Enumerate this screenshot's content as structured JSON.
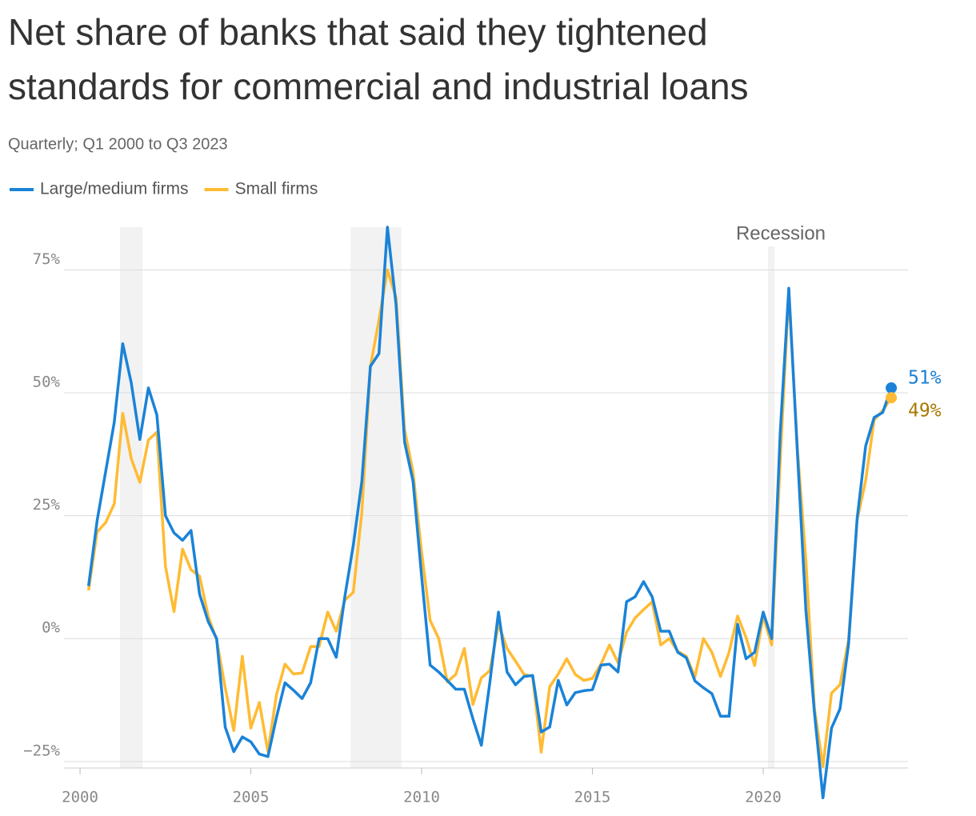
{
  "chart_data": {
    "type": "line",
    "title": [
      "Net share of banks that said they tightened",
      "standards for commercial and industrial loans"
    ],
    "subtitle": "Quarterly; Q1 2000 to Q3 2023",
    "x": [
      2000.25,
      2000.5,
      2000.75,
      2001,
      2001.25,
      2001.5,
      2001.75,
      2002,
      2002.25,
      2002.5,
      2002.75,
      2003,
      2003.25,
      2003.5,
      2003.75,
      2004,
      2004.25,
      2004.5,
      2004.75,
      2005,
      2005.25,
      2005.5,
      2005.75,
      2006,
      2006.25,
      2006.5,
      2006.75,
      2007,
      2007.25,
      2007.5,
      2007.75,
      2008,
      2008.25,
      2008.5,
      2008.75,
      2009,
      2009.25,
      2009.5,
      2009.75,
      2010,
      2010.25,
      2010.5,
      2010.75,
      2011,
      2011.25,
      2011.5,
      2011.75,
      2012,
      2012.25,
      2012.5,
      2012.75,
      2013,
      2013.25,
      2013.5,
      2013.75,
      2014,
      2014.25,
      2014.5,
      2014.75,
      2015,
      2015.25,
      2015.5,
      2015.75,
      2016,
      2016.25,
      2016.5,
      2016.75,
      2017,
      2017.25,
      2017.5,
      2017.75,
      2018,
      2018.25,
      2018.5,
      2018.75,
      2019,
      2019.25,
      2019.5,
      2019.75,
      2020,
      2020.25,
      2020.5,
      2020.75,
      2021,
      2021.25,
      2021.5,
      2021.75,
      2022,
      2022.25,
      2022.5,
      2022.75,
      2023,
      2023.25,
      2023.5,
      2023.75
    ],
    "series": [
      {
        "name": "Large/medium firms",
        "color": "#1a83d8",
        "label_color": "#1a7fd4",
        "end_label": "51%",
        "values": [
          10.7,
          24,
          34,
          44,
          60,
          52,
          40.5,
          51,
          45.5,
          25,
          21.5,
          20,
          22,
          9,
          3.5,
          0,
          -18,
          -23,
          -20,
          -21,
          -23.5,
          -24,
          -16,
          -9,
          -10.5,
          -12.2,
          -9,
          0,
          0,
          -3.8,
          8.5,
          19,
          32,
          55.4,
          58,
          83.7,
          68,
          40,
          32,
          12.7,
          -5.4,
          -6.8,
          -8.5,
          -10.3,
          -10.3,
          -16.3,
          -21.7,
          -8.8,
          5.4,
          -6.8,
          -9.4,
          -7.7,
          -7.5,
          -19,
          -18,
          -8.5,
          -13.5,
          -11,
          -10.6,
          -10.4,
          -5.4,
          -5.2,
          -6.8,
          7.5,
          8.5,
          11.6,
          8.5,
          1.5,
          1.5,
          -2.8,
          -3.9,
          -8.6,
          -10,
          -11.2,
          -15.8,
          -15.8,
          2.9,
          -4.1,
          -2.8,
          5.4,
          0,
          42,
          71.3,
          38,
          5.9,
          -15,
          -32.4,
          -18.2,
          -14.3,
          -1.1,
          24.4,
          39.2,
          45,
          46,
          51
        ]
      },
      {
        "name": "Small firms",
        "color": "#ffbb33",
        "label_color": "#a87900",
        "end_label": "49%",
        "values": [
          9.8,
          21.7,
          23.6,
          27.4,
          45.8,
          36.6,
          31.8,
          40.4,
          42,
          14.7,
          5.5,
          18.2,
          14,
          12.7,
          4.6,
          -0.3,
          -10,
          -18.7,
          -3.6,
          -18.2,
          -13,
          -23,
          -11.4,
          -5.2,
          -7.2,
          -7,
          -1.6,
          -1.6,
          5.4,
          1.5,
          7.8,
          9.4,
          25.7,
          55.4,
          64.8,
          75,
          69.4,
          42.5,
          33.9,
          17.6,
          3.7,
          0,
          -8.8,
          -7.3,
          -2,
          -13.4,
          -8,
          -6.5,
          2.9,
          -2,
          -4.6,
          -7.3,
          -7.7,
          -23.1,
          -9.8,
          -7.2,
          -4.1,
          -7.3,
          -8.5,
          -8.1,
          -5.2,
          -1.3,
          -4.9,
          1.3,
          4.2,
          5.9,
          7.5,
          -1.3,
          0,
          -2.6,
          -3.6,
          -7.8,
          0,
          -2.8,
          -7.7,
          -2.8,
          4.6,
          0.2,
          -5.5,
          4.6,
          -1.3,
          36.3,
          70.5,
          38.8,
          16,
          -14.2,
          -26,
          -11.1,
          -9.4,
          -0.3,
          24.1,
          32.2,
          44.5,
          46.4,
          49
        ]
      }
    ],
    "xlim": [
      1999.53,
      2024.24
    ],
    "xticks": [
      2000,
      2005,
      2010,
      2015,
      2020
    ],
    "ylim": [
      -33,
      85
    ],
    "yticks": [
      {
        "value": -25,
        "label": "−25%"
      },
      {
        "value": 0,
        "label": "0%"
      },
      {
        "value": 25,
        "label": "25%"
      },
      {
        "value": 50,
        "label": "50%"
      },
      {
        "value": 75,
        "label": "75%"
      }
    ],
    "grid": true,
    "recession_label": "Recession",
    "recessions": [
      [
        2001.17,
        2001.83
      ],
      [
        2007.92,
        2009.41
      ],
      [
        2020.14,
        2020.33
      ]
    ],
    "recession_color": "#f2f2f2"
  }
}
